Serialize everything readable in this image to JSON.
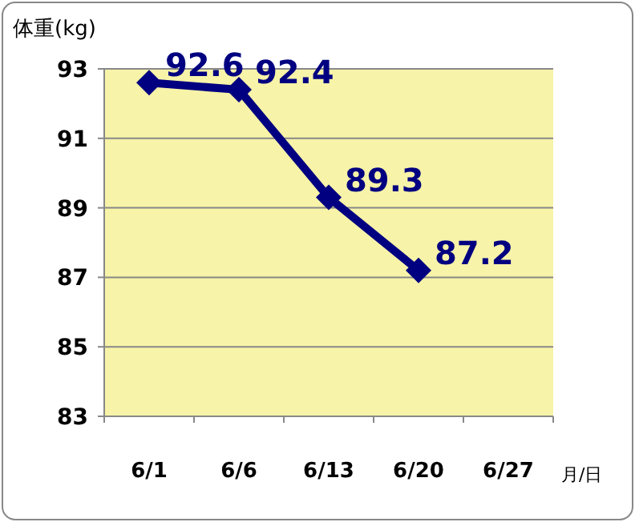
{
  "chart_data": {
    "type": "line",
    "ylabel": "体重(kg)",
    "xlabel": "月/日",
    "categories": [
      "6/1",
      "6/6",
      "6/13",
      "6/20",
      "6/27"
    ],
    "series": [
      {
        "color": "#000080",
        "values": [
          92.6,
          92.4,
          89.3,
          87.2,
          null
        ]
      }
    ],
    "ylim": [
      83,
      93
    ],
    "yticks": [
      83,
      85,
      87,
      89,
      91,
      93
    ],
    "grid": "y",
    "marker": "diamond",
    "line_style": "solid",
    "data_labels": true
  }
}
